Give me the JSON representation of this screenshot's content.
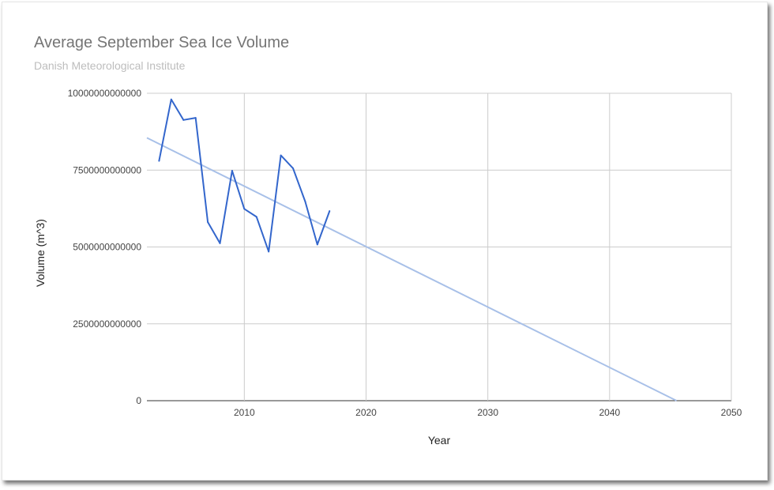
{
  "chart_data": {
    "type": "line",
    "title": "Average September Sea Ice Volume",
    "subtitle": "Danish Meteorological Institute",
    "xlabel": "Year",
    "ylabel": "Volume (m^3)",
    "xlim": [
      2002,
      2050
    ],
    "ylim": [
      0,
      10000000000000
    ],
    "x_ticks": [
      2010,
      2020,
      2030,
      2040,
      2050
    ],
    "y_ticks": [
      0,
      2500000000000,
      5000000000000,
      7500000000000,
      10000000000000
    ],
    "y_tick_labels": [
      "0",
      "2500000000000",
      "5000000000000",
      "7500000000000",
      "10000000000000"
    ],
    "grid": true,
    "legend": "none",
    "series": [
      {
        "color": "#3366cc",
        "points": [
          [
            2003,
            7800000000000
          ],
          [
            2004,
            9800000000000
          ],
          [
            2005,
            9130000000000
          ],
          [
            2006,
            9200000000000
          ],
          [
            2007,
            5810000000000
          ],
          [
            2008,
            5120000000000
          ],
          [
            2009,
            7480000000000
          ],
          [
            2010,
            6240000000000
          ],
          [
            2011,
            5980000000000
          ],
          [
            2012,
            4850000000000
          ],
          [
            2013,
            7980000000000
          ],
          [
            2014,
            7560000000000
          ],
          [
            2015,
            6480000000000
          ],
          [
            2016,
            5080000000000
          ],
          [
            2017,
            6170000000000
          ]
        ]
      }
    ],
    "trendline": {
      "color": "#a8c0e8",
      "start": [
        2002,
        8550000000000
      ],
      "end": [
        2045.5,
        0
      ]
    }
  }
}
